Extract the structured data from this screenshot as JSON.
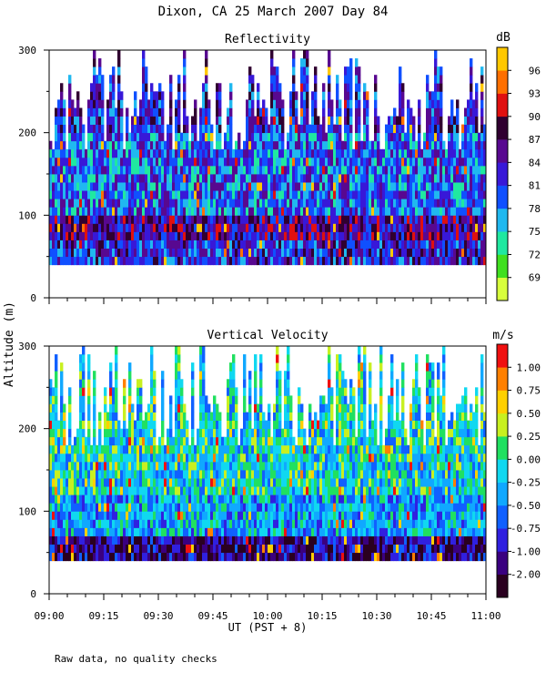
{
  "title": "Dixon, CA 25 March 2007  Day  84",
  "footnote": "Raw data, no quality checks",
  "chart_data": [
    {
      "type": "heatmap",
      "title": "Reflectivity",
      "ylabel": "Altitude (m)",
      "xlabel": "UT  (PST + 8)",
      "ylim": [
        0,
        300
      ],
      "yticks": [
        0,
        100,
        200,
        300
      ],
      "xlim_minutes": [
        540,
        660
      ],
      "xtick_labels": [],
      "data_ymin": 40,
      "colorbar": {
        "unit": "dB",
        "tick_labels": [
          "69",
          "72",
          "75",
          "78",
          "81",
          "84",
          "87",
          "90",
          "93",
          "96"
        ],
        "colors": [
          "#d8ff3c",
          "#40e020",
          "#20e8a0",
          "#20b8f0",
          "#1050ff",
          "#3818d8",
          "#580890",
          "#300030",
          "#e01010",
          "#ff7000",
          "#ffc800"
        ]
      },
      "profile_by_altitude": [
        {
          "altitude_m": 50,
          "level": 5
        },
        {
          "altitude_m": 80,
          "level": 6
        },
        {
          "altitude_m": 110,
          "level": 4
        },
        {
          "altitude_m": 160,
          "level": 4
        },
        {
          "altitude_m": 230,
          "level": 5
        },
        {
          "altitude_m": 290,
          "level": 5
        }
      ]
    },
    {
      "type": "heatmap",
      "title": "Vertical Velocity",
      "ylabel": "Altitude (m)",
      "xlabel": "UT  (PST + 8)",
      "ylim": [
        0,
        300
      ],
      "yticks": [
        0,
        100,
        200,
        300
      ],
      "xlim_minutes": [
        540,
        660
      ],
      "xtick_labels": [
        "09:00",
        "09:15",
        "09:30",
        "09:45",
        "10:00",
        "10:15",
        "10:30",
        "10:45",
        "11:00"
      ],
      "data_ymin": 40,
      "colorbar": {
        "unit": "m/s",
        "tick_labels": [
          "-2.00",
          "-1.00",
          "-0.75",
          "-0.50",
          "-0.25",
          "0.00",
          "0.25",
          "0.50",
          "0.75",
          "1.00"
        ],
        "colors": [
          "#2a0020",
          "#3a0080",
          "#3020e0",
          "#1060ff",
          "#10a8ff",
          "#10d8f0",
          "#20e060",
          "#c8f020",
          "#ffd000",
          "#ff8000",
          "#f01010"
        ]
      },
      "profile_by_altitude": [
        {
          "altitude_m": 50,
          "level": 1
        },
        {
          "altitude_m": 80,
          "level": 4
        },
        {
          "altitude_m": 150,
          "level": 5
        },
        {
          "altitude_m": 250,
          "level": 5
        }
      ]
    }
  ]
}
